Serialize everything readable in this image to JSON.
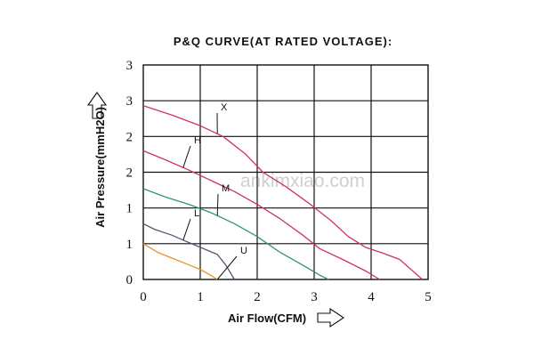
{
  "chart_data": {
    "type": "line",
    "title": "P&Q CURVE(AT RATED VOLTAGE):",
    "xlabel": "Air Flow(CFM)",
    "ylabel": "Air Pressure(mmH2O)",
    "xlim": [
      0,
      5
    ],
    "ylim": [
      0,
      3
    ],
    "x_ticks": [
      "0",
      "1",
      "2",
      "3",
      "4",
      "5"
    ],
    "y_ticks": [
      "0",
      "1",
      "1",
      "2",
      "2",
      "3",
      "3"
    ],
    "grid": true,
    "legend": "none",
    "watermark": "ankimxiao.com",
    "series": [
      {
        "name": "X",
        "color": "#d0335a",
        "x": [
          0,
          0.5,
          1.0,
          1.4,
          1.8,
          2.1,
          2.5,
          2.9,
          3.3,
          3.6,
          3.9,
          4.2,
          4.5,
          4.9
        ],
        "y": [
          2.43,
          2.3,
          2.15,
          2.0,
          1.75,
          1.5,
          1.3,
          1.07,
          0.82,
          0.6,
          0.45,
          0.37,
          0.28,
          0.0
        ]
      },
      {
        "name": "H",
        "color": "#d0335a",
        "x": [
          0,
          0.4,
          0.8,
          1.2,
          1.6,
          2.0,
          2.4,
          2.8,
          3.1,
          3.5,
          3.9,
          4.15
        ],
        "y": [
          1.8,
          1.67,
          1.53,
          1.38,
          1.23,
          1.05,
          0.85,
          0.62,
          0.43,
          0.28,
          0.12,
          0.0
        ]
      },
      {
        "name": "M",
        "color": "#2c9a6a",
        "x": [
          0,
          0.4,
          0.8,
          1.2,
          1.6,
          2.0,
          2.4,
          2.8,
          3.1,
          3.25
        ],
        "y": [
          1.27,
          1.15,
          1.05,
          0.93,
          0.78,
          0.6,
          0.38,
          0.2,
          0.06,
          0.0
        ]
      },
      {
        "name": "L",
        "color": "#555577",
        "x": [
          0,
          0.2,
          0.5,
          0.7,
          1.0,
          1.3,
          1.45,
          1.6
        ],
        "y": [
          0.78,
          0.7,
          0.62,
          0.55,
          0.45,
          0.35,
          0.2,
          0.0
        ]
      },
      {
        "name": "U",
        "color": "#e0962a",
        "x": [
          0,
          0.25,
          0.5,
          0.75,
          1.0,
          1.2,
          1.3
        ],
        "y": [
          0.5,
          0.38,
          0.3,
          0.22,
          0.14,
          0.05,
          0.0
        ]
      }
    ]
  }
}
